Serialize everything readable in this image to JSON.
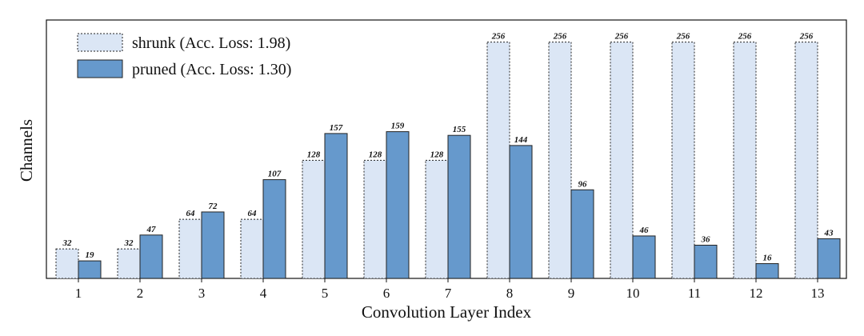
{
  "chart_data": {
    "type": "bar",
    "title": "",
    "xlabel": "Convolution Layer Index",
    "ylabel": "Channels",
    "categories": [
      "1",
      "2",
      "3",
      "4",
      "5",
      "6",
      "7",
      "8",
      "9",
      "10",
      "11",
      "12",
      "13"
    ],
    "series": [
      {
        "name": "shrunk (Acc. Loss: 1.98)",
        "color": "#dbe6f5",
        "stroke": "dotted",
        "values": [
          32,
          32,
          64,
          64,
          128,
          128,
          128,
          256,
          256,
          256,
          256,
          256,
          256
        ]
      },
      {
        "name": "pruned (Acc. Loss: 1.30)",
        "color": "#6699cc",
        "stroke": "solid",
        "values": [
          19,
          47,
          72,
          107,
          157,
          159,
          155,
          144,
          96,
          46,
          36,
          16,
          43
        ]
      }
    ],
    "ylim": [
      0,
      280
    ],
    "grid": false,
    "legend_position": "top-left",
    "y_tick_labels_shown": false
  }
}
